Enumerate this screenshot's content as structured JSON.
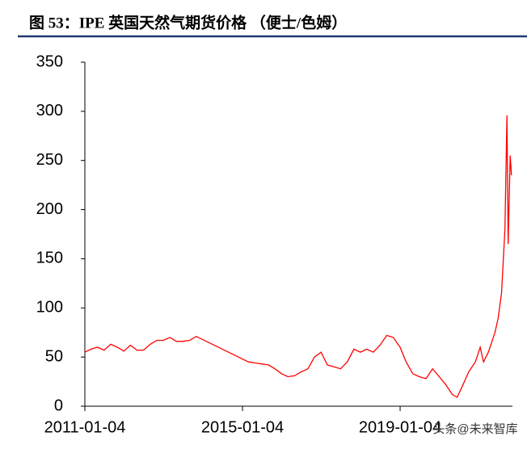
{
  "chart_data": {
    "type": "line",
    "title": "图 53：IPE 英国天然气期货价格 （便士/色姆）",
    "annotation": "头条@未来智库",
    "x": [
      "2011-01-04",
      "2011-03-01",
      "2011-05-01",
      "2011-07-01",
      "2011-09-01",
      "2011-11-01",
      "2012-01-01",
      "2012-03-01",
      "2012-05-01",
      "2012-07-01",
      "2012-09-01",
      "2012-11-01",
      "2013-01-01",
      "2013-03-01",
      "2013-05-01",
      "2013-07-01",
      "2013-09-01",
      "2013-11-01",
      "2015-01-04",
      "2015-03-01",
      "2015-05-01",
      "2015-07-01",
      "2015-09-01",
      "2015-11-01",
      "2016-01-01",
      "2016-03-01",
      "2016-05-01",
      "2016-07-01",
      "2016-09-01",
      "2016-11-01",
      "2017-01-01",
      "2017-03-01",
      "2017-05-01",
      "2017-07-01",
      "2017-09-01",
      "2017-11-01",
      "2018-01-01",
      "2018-03-01",
      "2018-05-01",
      "2018-07-01",
      "2018-09-01",
      "2018-11-01",
      "2019-01-04",
      "2019-03-01",
      "2019-05-01",
      "2019-07-01",
      "2019-09-01",
      "2019-11-01",
      "2020-01-01",
      "2020-03-01",
      "2020-05-01",
      "2020-06-15",
      "2020-08-01",
      "2020-10-01",
      "2020-12-01",
      "2021-01-15",
      "2021-02-15",
      "2021-04-01",
      "2021-06-01",
      "2021-07-01",
      "2021-08-01",
      "2021-09-01",
      "2021-09-20",
      "2021-10-01",
      "2021-10-20",
      "2021-11-01"
    ],
    "series": [
      {
        "color": "#ff0000",
        "values": [
          55,
          58,
          60,
          57,
          63,
          60,
          56,
          62,
          57,
          57,
          63,
          67,
          67,
          70,
          66,
          66,
          67,
          71,
          48,
          45,
          44,
          43,
          42,
          38,
          33,
          30,
          31,
          35,
          38,
          50,
          55,
          42,
          40,
          38,
          45,
          58,
          55,
          58,
          55,
          62,
          72,
          70,
          60,
          45,
          33,
          30,
          28,
          38,
          30,
          22,
          12,
          9,
          20,
          35,
          45,
          60,
          45,
          55,
          75,
          90,
          115,
          180,
          296,
          165,
          255,
          235
        ]
      }
    ],
    "xlim": [
      "2011-01-04",
      "2021-11-10"
    ],
    "xticks": [
      "2011-01-04",
      "2015-01-04",
      "2019-01-04"
    ],
    "ylim": [
      0,
      350
    ],
    "yticks": [
      0,
      50,
      100,
      150,
      200,
      250,
      300,
      350
    ]
  }
}
